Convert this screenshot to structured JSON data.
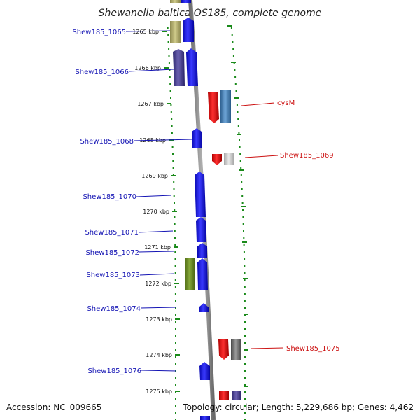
{
  "title": "Shewanella baltica OS185, complete genome",
  "footer": {
    "accession": "Accession: NC_009665",
    "topology": "Topology: circular; Length: 5,229,686 bp; Genes: 4,462"
  },
  "kbp_ticks": [
    "1265 kbp",
    "1266 kbp",
    "1267 kbp",
    "1268 kbp",
    "1269 kbp",
    "1270 kbp",
    "1271 kbp",
    "1272 kbp",
    "1273 kbp",
    "1274 kbp",
    "1275 kbp"
  ],
  "left_labels": [
    "Shew185_1065",
    "Shew185_1066",
    "Shew185_1068",
    "Shew185_1070",
    "Shew185_1071",
    "Shew185_1072",
    "Shew185_1073",
    "Shew185_1074",
    "Shew185_1076"
  ],
  "right_labels": [
    "cysM",
    "Shew185_1069",
    "Shew185_1075"
  ],
  "colors": {
    "forward_gene": "#1010e0",
    "reverse_gene": "#e01010",
    "olive": "#6b8e23",
    "khaki": "#b5b070",
    "slate": "#4a3f8f",
    "steel": "#4682b4",
    "gray_gene": "#707070",
    "light_gray_gene": "#c8c8c8",
    "track": "#888888",
    "dots": "#1a8a1a",
    "blue_label": "#1414b4",
    "red_label": "#cc1111"
  }
}
